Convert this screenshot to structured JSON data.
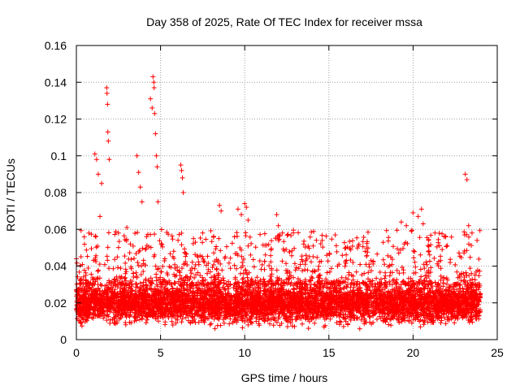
{
  "chart_data": {
    "type": "scatter",
    "title": "Day 358 of 2025, Rate Of TEC Index for receiver mssa",
    "xlabel": "GPS time / hours",
    "ylabel": "ROTI / TECUs",
    "xlim": [
      0,
      25
    ],
    "ylim": [
      0,
      0.16
    ],
    "xticks": [
      0,
      5,
      10,
      15,
      20,
      25
    ],
    "xtick_labels": [
      "0",
      "5",
      "10",
      "15",
      "20",
      "25"
    ],
    "yticks": [
      0,
      0.02,
      0.04,
      0.06,
      0.08,
      0.1,
      0.12,
      0.14,
      0.16
    ],
    "ytick_labels": [
      "0",
      "0.02",
      "0.04",
      "0.06",
      "0.08",
      "0.1",
      "0.12",
      "0.14",
      "0.16"
    ],
    "grid": true,
    "marker": "+",
    "series": [
      {
        "name": "ROTI",
        "color": "#ff0000",
        "x_range": [
          0,
          24
        ],
        "baseline_band": [
          0.005,
          0.035
        ],
        "points": [
          [
            1.1,
            0.101
          ],
          [
            1.2,
            0.098
          ],
          [
            1.3,
            0.09
          ],
          [
            1.4,
            0.067
          ],
          [
            1.5,
            0.085
          ],
          [
            1.8,
            0.137
          ],
          [
            1.82,
            0.134
          ],
          [
            1.85,
            0.128
          ],
          [
            1.87,
            0.113
          ],
          [
            1.9,
            0.108
          ],
          [
            1.95,
            0.098
          ],
          [
            2.5,
            0.058
          ],
          [
            3.0,
            0.061
          ],
          [
            3.6,
            0.1
          ],
          [
            3.7,
            0.091
          ],
          [
            3.8,
            0.083
          ],
          [
            3.9,
            0.075
          ],
          [
            4.4,
            0.131
          ],
          [
            4.5,
            0.126
          ],
          [
            4.55,
            0.143
          ],
          [
            4.6,
            0.14
          ],
          [
            4.62,
            0.137
          ],
          [
            4.65,
            0.123
          ],
          [
            4.7,
            0.112
          ],
          [
            4.75,
            0.1
          ],
          [
            4.8,
            0.094
          ],
          [
            4.85,
            0.075
          ],
          [
            6.2,
            0.095
          ],
          [
            6.25,
            0.092
          ],
          [
            6.3,
            0.088
          ],
          [
            6.35,
            0.08
          ],
          [
            7.5,
            0.058
          ],
          [
            8.5,
            0.073
          ],
          [
            8.6,
            0.07
          ],
          [
            9.6,
            0.071
          ],
          [
            9.8,
            0.068
          ],
          [
            10.0,
            0.074
          ],
          [
            10.1,
            0.072
          ],
          [
            10.2,
            0.065
          ],
          [
            11.9,
            0.068
          ],
          [
            12.0,
            0.062
          ],
          [
            13.5,
            0.052
          ],
          [
            14.6,
            0.054
          ],
          [
            15.6,
            0.041
          ],
          [
            16.0,
            0.05
          ],
          [
            17.5,
            0.043
          ],
          [
            18.3,
            0.041
          ],
          [
            19.3,
            0.064
          ],
          [
            19.6,
            0.062
          ],
          [
            20.0,
            0.069
          ],
          [
            20.3,
            0.067
          ],
          [
            20.5,
            0.071
          ],
          [
            20.6,
            0.063
          ],
          [
            21.3,
            0.058
          ],
          [
            22.2,
            0.042
          ],
          [
            23.1,
            0.09
          ],
          [
            23.2,
            0.087
          ],
          [
            23.3,
            0.062
          ],
          [
            23.5,
            0.058
          ],
          [
            23.8,
            0.054
          ]
        ]
      }
    ]
  }
}
